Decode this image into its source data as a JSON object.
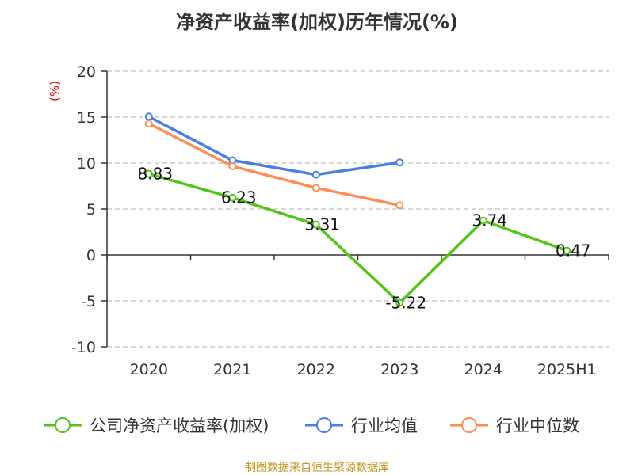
{
  "chart_data": {
    "type": "line",
    "title": "净资产收益率(加权)历年情况(%)",
    "ylabel": "(%)",
    "categories": [
      "2020",
      "2021",
      "2022",
      "2023",
      "2024",
      "2025H1"
    ],
    "ylim": [
      -10,
      20
    ],
    "yticks": [
      20,
      15,
      10,
      5,
      0,
      -5,
      -10
    ],
    "grid": true,
    "legend_position": "bottom",
    "series": [
      {
        "name": "公司净资产收益率(加权)",
        "color": "#52c41a",
        "values": [
          8.83,
          6.23,
          3.31,
          -5.22,
          3.74,
          0.47
        ],
        "labels": [
          "8.83",
          "6.23",
          "3.31",
          "-5.22",
          "3.74",
          "0.47"
        ]
      },
      {
        "name": "行业均值",
        "color": "#4a7fe0",
        "values": [
          15.06,
          10.3,
          8.74,
          10.06,
          null,
          null
        ]
      },
      {
        "name": "行业中位数",
        "color": "#ff8c55",
        "values": [
          14.3,
          9.66,
          7.3,
          5.4,
          null,
          null
        ]
      }
    ]
  },
  "source": "制图数据来自恒生聚源数据库"
}
